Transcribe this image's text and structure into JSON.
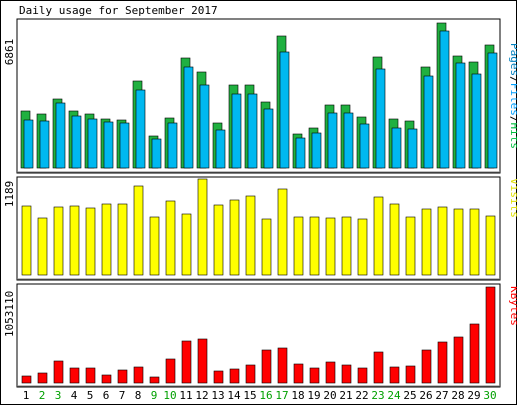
{
  "chart_data": {
    "type": "bar",
    "title": "Daily usage for September 2017",
    "categories": [
      "1",
      "2",
      "3",
      "4",
      "5",
      "6",
      "7",
      "8",
      "9",
      "10",
      "11",
      "12",
      "13",
      "14",
      "15",
      "16",
      "17",
      "18",
      "19",
      "20",
      "21",
      "22",
      "23",
      "24",
      "25",
      "26",
      "27",
      "28",
      "29",
      "30"
    ],
    "weekend_days": [
      "2",
      "3",
      "9",
      "10",
      "16",
      "17",
      "23",
      "24",
      "30"
    ],
    "panels": [
      {
        "id": "pages_files_hits",
        "max_label": "6861",
        "ymax": 6861,
        "legend": [
          {
            "text": "Pages",
            "color": "#0080c0"
          },
          {
            "text": "/",
            "color": "#000000"
          },
          {
            "text": "Files",
            "color": "#00a0ff"
          },
          {
            "text": "/",
            "color": "#000000"
          },
          {
            "text": "Hits",
            "color": "#00c040"
          }
        ],
        "series": [
          {
            "name": "Hits",
            "color": "#20b040",
            "values": [
              2700,
              2550,
              3250,
              2700,
              2550,
              2300,
              2250,
              4100,
              1500,
              2350,
              5150,
              4500,
              2100,
              3900,
              3900,
              3100,
              6200,
              1600,
              1900,
              2950,
              2950,
              2400,
              5200,
              2300,
              2200,
              4750,
              6800,
              5250,
              5000,
              5800
            ]
          },
          {
            "name": "Files",
            "color": "#00b8f0",
            "values": [
              2250,
              2200,
              3050,
              2450,
              2300,
              2150,
              2100,
              3650,
              1350,
              2100,
              4750,
              3900,
              1800,
              3500,
              3500,
              2750,
              5450,
              1400,
              1650,
              2600,
              2600,
              2050,
              4650,
              1900,
              1850,
              4300,
              6450,
              4950,
              4400,
              5400
            ]
          },
          {
            "name": "Pages",
            "color": "#0080c0",
            "values": [
              0,
              0,
              0,
              0,
              0,
              0,
              0,
              0,
              0,
              0,
              0,
              0,
              0,
              0,
              0,
              0,
              0,
              0,
              0,
              0,
              0,
              0,
              0,
              0,
              0,
              0,
              0,
              0,
              0,
              0
            ]
          }
        ]
      },
      {
        "id": "visits",
        "max_label": "1189",
        "ymax": 1189,
        "legend": [
          {
            "text": "Visits",
            "color": "#e0e000"
          }
        ],
        "series": [
          {
            "name": "Visits",
            "color": "#ffff00",
            "values": [
              860,
              700,
              840,
              860,
              830,
              880,
              880,
              1100,
              720,
              920,
              760,
              1189,
              870,
              930,
              980,
              690,
              1060,
              720,
              720,
              700,
              720,
              690,
              960,
              880,
              720,
              820,
              840,
              820,
              820,
              730
            ]
          }
        ]
      },
      {
        "id": "kbytes",
        "max_label": "1053110",
        "ymax": 1053110,
        "legend": [
          {
            "text": "KBytes",
            "color": "#ff0000"
          }
        ],
        "series": [
          {
            "name": "KBytes",
            "color": "#ff0000",
            "values": [
              75000,
              115000,
              245000,
              160000,
              160000,
              90000,
              140000,
              180000,
              65000,
              265000,
              460000,
              480000,
              135000,
              155000,
              200000,
              360000,
              385000,
              210000,
              160000,
              235000,
              195000,
              165000,
              345000,
              175000,
              185000,
              365000,
              450000,
              510000,
              645000,
              1053110
            ]
          }
        ]
      }
    ]
  }
}
